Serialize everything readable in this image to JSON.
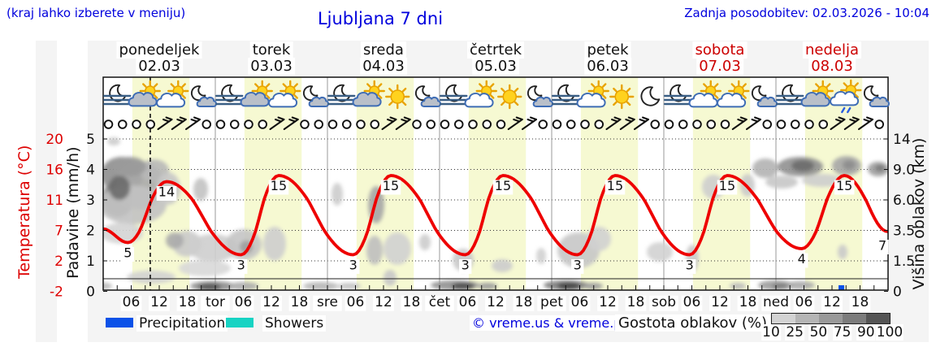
{
  "header": {
    "hint": "(kraj lahko izberete v meniju)",
    "title": "Ljubljana 7 dni",
    "updated": "Zadnja posodobitev: 02.03.2026 - 10:04"
  },
  "days": [
    {
      "name": "ponedeljek",
      "date": "02.03",
      "highlight": false
    },
    {
      "name": "torek",
      "date": "03.03",
      "highlight": false
    },
    {
      "name": "sreda",
      "date": "04.03",
      "highlight": false
    },
    {
      "name": "četrtek",
      "date": "05.03",
      "highlight": false
    },
    {
      "name": "petek",
      "date": "06.03",
      "highlight": false
    },
    {
      "name": "sobota",
      "date": "07.03",
      "highlight": true
    },
    {
      "name": "nedelja",
      "date": "08.03",
      "highlight": true
    }
  ],
  "chart_data": {
    "type": "line",
    "title": "Ljubljana 7 dni",
    "axes": {
      "temp": {
        "label": "Temperatura (°C)",
        "ticks": [
          "20",
          "16",
          "11",
          "7",
          "2",
          "-2"
        ],
        "color": "#dd0000"
      },
      "precip": {
        "label": "Padavine (mm/h)",
        "ticks": [
          "5",
          "4",
          "3",
          "2",
          "1",
          "0"
        ]
      },
      "cloud": {
        "label": "Višina oblakov (km)",
        "ticks": [
          "14",
          "9.0",
          "6.0",
          "3.5",
          "1.5",
          "0"
        ]
      },
      "x": {
        "hour_labels": [
          "06",
          "12",
          "18"
        ],
        "day_abbrs": [
          "tor",
          "sre",
          "čet",
          "pet",
          "sob",
          "ned"
        ]
      }
    },
    "temperature_series": {
      "name": "Temperatura (°C)",
      "color": "#ee0000",
      "points": [
        {
          "t": 0.0,
          "temp": 7.2
        },
        {
          "t": 0.22,
          "temp": 5
        },
        {
          "t": 0.565,
          "temp": 14
        },
        {
          "t": 1.23,
          "temp": 3
        },
        {
          "t": 1.565,
          "temp": 15
        },
        {
          "t": 2.23,
          "temp": 3
        },
        {
          "t": 2.565,
          "temp": 15
        },
        {
          "t": 3.23,
          "temp": 3
        },
        {
          "t": 3.565,
          "temp": 15
        },
        {
          "t": 4.23,
          "temp": 3
        },
        {
          "t": 4.565,
          "temp": 15
        },
        {
          "t": 5.23,
          "temp": 3
        },
        {
          "t": 5.565,
          "temp": 15
        },
        {
          "t": 6.23,
          "temp": 4
        },
        {
          "t": 6.61,
          "temp": 15
        },
        {
          "t": 7.0,
          "temp": 6.8
        }
      ]
    },
    "point_labels": [
      {
        "t": 0.22,
        "temp": 5,
        "label": "5"
      },
      {
        "t": 0.565,
        "temp": 14,
        "label": "14"
      },
      {
        "t": 1.23,
        "temp": 3,
        "label": "3"
      },
      {
        "t": 1.565,
        "temp": 15,
        "label": "15"
      },
      {
        "t": 2.23,
        "temp": 3,
        "label": "3"
      },
      {
        "t": 2.565,
        "temp": 15,
        "label": "15"
      },
      {
        "t": 3.23,
        "temp": 3,
        "label": "3"
      },
      {
        "t": 3.565,
        "temp": 15,
        "label": "15"
      },
      {
        "t": 4.23,
        "temp": 3,
        "label": "3"
      },
      {
        "t": 4.565,
        "temp": 15,
        "label": "15"
      },
      {
        "t": 5.23,
        "temp": 3,
        "label": "3"
      },
      {
        "t": 5.565,
        "temp": 15,
        "label": "15"
      },
      {
        "t": 6.23,
        "temp": 4,
        "label": "4"
      },
      {
        "t": 6.61,
        "temp": 15,
        "label": "15"
      },
      {
        "t": 6.95,
        "temp": 6.2,
        "label": "7"
      }
    ],
    "weather_icons": [
      "moon-fog",
      "sun-gcloud",
      "sun-wcloud",
      "moon-gcloud",
      "moon-fog",
      "sun-gcloud",
      "sun-wcloud",
      "moon-gcloud",
      "moon-fog",
      "sun-gcloud",
      "sun",
      "moon-gcloud",
      "moon-fog",
      "sun-wcloud",
      "sun",
      "moon-gcloud",
      "moon-fog",
      "sun-wcloud",
      "sun",
      "moon",
      "moon-fog",
      "sun-wcloud",
      "sun-wcloud",
      "moon-gcloud",
      "moon-fog",
      "sun-gcloud",
      "sun-wcloud-showers",
      "moon-gcloud"
    ],
    "wind_symbols": [
      "calm",
      "calm",
      "calm",
      "calm",
      "barb",
      "barb",
      "barb",
      "calm",
      "calm",
      "calm",
      "calm",
      "calm",
      "barb",
      "barb",
      "calm",
      "calm",
      "calm",
      "calm",
      "calm",
      "calm",
      "barb",
      "barb",
      "calm",
      "calm",
      "calm",
      "calm",
      "calm",
      "calm",
      "calm",
      "barb",
      "barb",
      "calm",
      "calm",
      "calm",
      "calm",
      "calm",
      "barb",
      "barb",
      "barb",
      "calm",
      "calm",
      "calm",
      "calm",
      "calm",
      "calm",
      "barb",
      "barb",
      "calm",
      "calm",
      "calm",
      "calm",
      "calm",
      "barb",
      "barb",
      "barb",
      "calm"
    ],
    "daylight_band": {
      "start_frac": 0.26,
      "end_frac": 0.77,
      "color": "#f6f9d2"
    },
    "now_marker": {
      "t": 0.42
    },
    "precipitation_marks": [
      {
        "t": 6.58,
        "mm": 0.2,
        "color": "#0b52e8"
      }
    ],
    "cloud_blobs": [
      [
        150,
        215,
        26,
        22,
        "#8e8e8e"
      ],
      [
        145,
        245,
        20,
        22,
        "#848484"
      ],
      [
        172,
        228,
        30,
        30,
        "#a8a8a8"
      ],
      [
        163,
        252,
        42,
        24,
        "#c2c2c2"
      ],
      [
        190,
        210,
        18,
        14,
        "#b8b8b8"
      ],
      [
        207,
        232,
        15,
        20,
        "#c8c8c8"
      ],
      [
        150,
        287,
        26,
        13,
        "#d4d4d4"
      ],
      [
        147,
        231,
        13,
        15,
        "#6a6a6a"
      ],
      [
        160,
        205,
        20,
        12,
        "#9a9a9a"
      ],
      [
        140,
        174,
        8,
        5,
        "#cccccc"
      ],
      [
        230,
        300,
        18,
        16,
        "#cacaca"
      ],
      [
        262,
        305,
        30,
        17,
        "#cecece"
      ],
      [
        300,
        301,
        22,
        19,
        "#c4c4c4"
      ],
      [
        303,
        304,
        8,
        8,
        "#9f9f9f"
      ],
      [
        338,
        300,
        14,
        21,
        "#cecece"
      ],
      [
        215,
        296,
        11,
        10,
        "#ababab"
      ],
      [
        252,
        330,
        32,
        10,
        "#d8d8d8"
      ],
      [
        186,
        341,
        30,
        8,
        "#d2d2d2"
      ],
      [
        247,
        233,
        9,
        14,
        "#c2c2c2"
      ],
      [
        415,
        239,
        7,
        14,
        "#cccccc"
      ],
      [
        463,
        252,
        10,
        23,
        "#a5a5a5"
      ],
      [
        461,
        308,
        10,
        18,
        "#bfbfbf"
      ],
      [
        480,
        342,
        8,
        10,
        "#c8c8c8"
      ],
      [
        523,
        298,
        7,
        10,
        "#cccccc"
      ],
      [
        489,
        306,
        17,
        20,
        "#d0d0d0"
      ],
      [
        570,
        320,
        13,
        14,
        "#c9c9c9"
      ],
      [
        618,
        327,
        13,
        8,
        "#cccccc"
      ],
      [
        666,
        315,
        6,
        10,
        "#d0d0d0"
      ],
      [
        712,
        308,
        26,
        22,
        "#c7c7c7"
      ],
      [
        737,
        294,
        15,
        15,
        "#d0d0d0"
      ],
      [
        812,
        310,
        16,
        12,
        "#d1d1d1"
      ],
      [
        852,
        318,
        8,
        17,
        "#c9c9c9"
      ],
      [
        878,
        230,
        14,
        15,
        "#cecece"
      ],
      [
        920,
        228,
        9,
        14,
        "#cacaca"
      ],
      [
        942,
        207,
        16,
        12,
        "#b2b2b2"
      ],
      [
        985,
        205,
        28,
        12,
        "#909090"
      ],
      [
        988,
        204,
        14,
        7,
        "#6c6c6c"
      ],
      [
        1042,
        204,
        18,
        12,
        "#a6a6a6"
      ],
      [
        1045,
        203,
        8,
        6,
        "#8c8c8c"
      ],
      [
        1081,
        208,
        13,
        9,
        "#9d9d9d"
      ],
      [
        1083,
        207,
        6,
        4,
        "#787878"
      ],
      [
        962,
        224,
        20,
        8,
        "#c7c7c7"
      ],
      [
        1012,
        222,
        25,
        8,
        "#cdcdcd"
      ],
      [
        1037,
        310,
        6,
        9,
        "#cacaca"
      ],
      [
        262,
        352,
        28,
        6,
        "#8c8c8c"
      ],
      [
        258,
        353,
        14,
        4,
        "#575757"
      ],
      [
        300,
        352,
        18,
        5,
        "#ababab"
      ],
      [
        395,
        352,
        22,
        5,
        "#b6b6b6"
      ],
      [
        430,
        352,
        14,
        4,
        "#c1c1c1"
      ],
      [
        560,
        351,
        30,
        6,
        "#909090"
      ],
      [
        570,
        352,
        14,
        4,
        "#484848"
      ],
      [
        600,
        352,
        12,
        4,
        "#9a9a9a"
      ],
      [
        697,
        351,
        28,
        6,
        "#7c7c7c"
      ],
      [
        700,
        352,
        14,
        4,
        "#414141"
      ],
      [
        730,
        352,
        12,
        4,
        "#9a9a9a"
      ],
      [
        955,
        351,
        22,
        6,
        "#9b9b9b"
      ],
      [
        985,
        351,
        18,
        5,
        "#a9a9a9"
      ],
      [
        960,
        352,
        10,
        3,
        "#787878"
      ],
      [
        128,
        352,
        10,
        4,
        "#b6b6b6"
      ],
      [
        908,
        352,
        10,
        4,
        "#bababa"
      ]
    ]
  },
  "legend": {
    "precip_label": "Precipitation",
    "precip_color": "#0b52e8",
    "showers_label": "Showers",
    "showers_color": "#17d3c3"
  },
  "footer": {
    "copyright": "© vreme.us & vreme.pro",
    "cloud_density_label": "Gostota oblakov (%)",
    "colorbar": {
      "ticks": [
        "10",
        "25",
        "50",
        "75",
        "90",
        "100"
      ],
      "colors": [
        "#d3d3d3",
        "#b5b5b5",
        "#999999",
        "#7c7c7c",
        "#555555"
      ]
    }
  }
}
